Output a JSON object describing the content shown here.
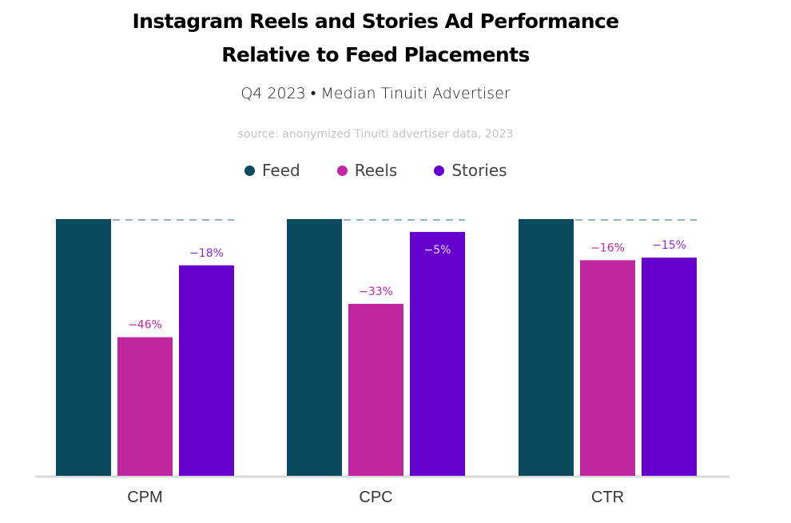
{
  "header": {
    "title_line1": "Instagram Reels and Stories Ad Performance",
    "title_line2": "Relative to Feed Placements",
    "subtitle": "Q4 2023 • Median Tinuiti Advertiser",
    "source": "source: anonymized Tinuiti advertiser data, 2023"
  },
  "legend": [
    {
      "label": "Feed",
      "color": "#0a4a5e"
    },
    {
      "label": "Reels",
      "color": "#c026a0"
    },
    {
      "label": "Stories",
      "color": "#6600cc"
    }
  ],
  "chart_data": {
    "type": "bar",
    "title": "Instagram Reels and Stories Ad Performance Relative to Feed Placements",
    "subtitle": "Q4 2023 • Median Tinuiti Advertiser",
    "categories": [
      "CPM",
      "CPC",
      "CTR"
    ],
    "series": [
      {
        "name": "Feed",
        "color": "#0a4a5e",
        "values": [
          0,
          0,
          0
        ],
        "labels": [
          "",
          "",
          ""
        ]
      },
      {
        "name": "Reels",
        "color": "#c026a0",
        "values": [
          -46,
          -33,
          -16
        ],
        "labels": [
          "−46%",
          "−33%",
          "−16%"
        ],
        "label_color": "#c026a0"
      },
      {
        "name": "Stories",
        "color": "#6600cc",
        "values": [
          -18,
          -5,
          -15
        ],
        "labels": [
          "−18%",
          "−5%",
          "−15%"
        ],
        "label_color": "#8a2be2"
      }
    ],
    "units": "% relative to Feed (Feed = 100% baseline)",
    "ylim": [
      -100,
      0
    ],
    "reference_line": "Feed baseline (dashed)",
    "legend_position": "top-center",
    "grid": false,
    "xlabel": "",
    "ylabel": ""
  }
}
